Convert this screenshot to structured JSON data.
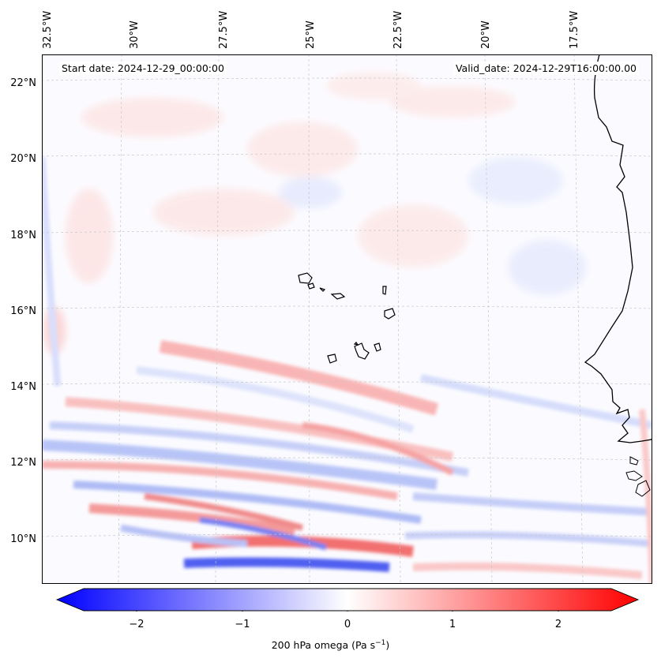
{
  "map": {
    "start_label": "Start date: 2024-12-29_00:00:00",
    "valid_label": "Valid_date: 2024-12-29T16:00:00.00",
    "lon_labels": [
      "32.5°W",
      "30°W",
      "27.5°W",
      "25°W",
      "22.5°W",
      "20°W",
      "17.5°W"
    ],
    "lat_labels": [
      "22°N",
      "20°N",
      "18°N",
      "16°N",
      "14°N",
      "12°N",
      "10°N"
    ],
    "islands": [
      "Santo Antão",
      "São Vicente",
      "São Nicolau",
      "Sal",
      "Boa Vista",
      "Brava",
      "Fogo",
      "Santiago",
      "Maio"
    ],
    "coastline": "West Africa (Mauritania, Senegal, Gambia, Guinea-Bissau)"
  },
  "colorbar": {
    "title": "200 hPa omega (Pa s",
    "title_sup": "−1",
    "title_end": ")",
    "tick_labels": [
      "−2",
      "−1",
      "0",
      "1",
      "2"
    ],
    "tick_values": [
      -2,
      -1,
      0,
      1,
      2
    ],
    "min": -2.6,
    "max": 2.6,
    "extend": "both",
    "colors": {
      "negative": "#0000ff",
      "zero": "#ffffff",
      "positive": "#ff0000"
    }
  }
}
